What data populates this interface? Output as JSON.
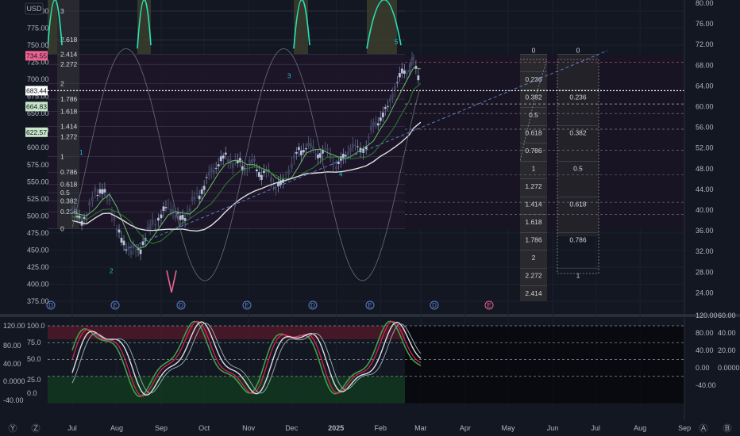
{
  "currency_label": "USD",
  "chart_data": {
    "type": "candlestick",
    "symbol_currency": "USD",
    "x_ticks": [
      "Jul",
      "Aug",
      "Sep",
      "Oct",
      "Nov",
      "Dec",
      "2025",
      "Feb",
      "Mar",
      "Apr",
      "May",
      "Jun",
      "Jul",
      "Aug",
      "Sep"
    ],
    "left_axis_ticks": [
      "800.00",
      "775.00",
      "750.00",
      "725.00",
      "700.00",
      "675.00",
      "650.00",
      "625.00",
      "600.00",
      "575.00",
      "550.00",
      "525.00",
      "500.00",
      "475.00",
      "450.00",
      "425.00",
      "400.00",
      "375.00"
    ],
    "right_axis_ticks": [
      "80.00",
      "76.00",
      "72.00",
      "68.00",
      "64.00",
      "60.00",
      "56.00",
      "52.00",
      "48.00",
      "44.00",
      "40.00",
      "36.00",
      "32.00",
      "28.00",
      "24.00"
    ],
    "price_badges": [
      {
        "value": "734.55",
        "color": "#f06292"
      },
      {
        "value": "683.44",
        "color": "#ffffff"
      },
      {
        "value": "664.83",
        "color": "#c8e6c9"
      },
      {
        "value": "622.57",
        "color": "#c8e6c9"
      }
    ],
    "left_fib_levels": [
      {
        "label": "3",
        "price": 800
      },
      {
        "label": "2.618",
        "price": 758
      },
      {
        "label": "2.414",
        "price": 737
      },
      {
        "label": "2.272",
        "price": 722
      },
      {
        "label": "2",
        "price": 694
      },
      {
        "label": "1.786",
        "price": 671
      },
      {
        "label": "1.618",
        "price": 653
      },
      {
        "label": "1.414",
        "price": 631
      },
      {
        "label": "1.272",
        "price": 616
      },
      {
        "label": "1",
        "price": 587
      },
      {
        "label": "0.786",
        "price": 564
      },
      {
        "label": "0.618",
        "price": 546
      },
      {
        "label": "0.5",
        "price": 534
      },
      {
        "label": "0.382",
        "price": 522
      },
      {
        "label": "0.236",
        "price": 506
      },
      {
        "label": "0",
        "price": 481
      }
    ],
    "right_fib_a": [
      "0",
      "0.236",
      "0.382",
      "0.5",
      "0.618",
      "0.786",
      "1",
      "1.272",
      "1.414",
      "1.618",
      "1.786",
      "2",
      "2.272",
      "2.414"
    ],
    "right_fib_b": [
      "0",
      "0.236",
      "0.382",
      "0.5",
      "0.618",
      "0.786",
      "1"
    ],
    "wave_labels": [
      "1",
      "2",
      "3",
      "4",
      "5"
    ],
    "event_markers": [
      "D",
      "E",
      "D",
      "E",
      "D",
      "E",
      "D",
      "E"
    ],
    "oscillator_left_ticks": [
      "120.00",
      "100.0",
      "80.00",
      "75.0",
      "50.0",
      "40.00",
      "25.0",
      "0.0000",
      "0.0",
      "-40.00"
    ],
    "oscillator_right_ticks_a": [
      "120.00",
      "80.00",
      "40.00",
      "0.00",
      "-40.00"
    ],
    "oscillator_right_ticks_b": [
      "60.00",
      "40.00",
      "20.00",
      "0.0000"
    ],
    "bottom_icons": [
      "Y",
      "Z",
      "A",
      "B"
    ]
  }
}
